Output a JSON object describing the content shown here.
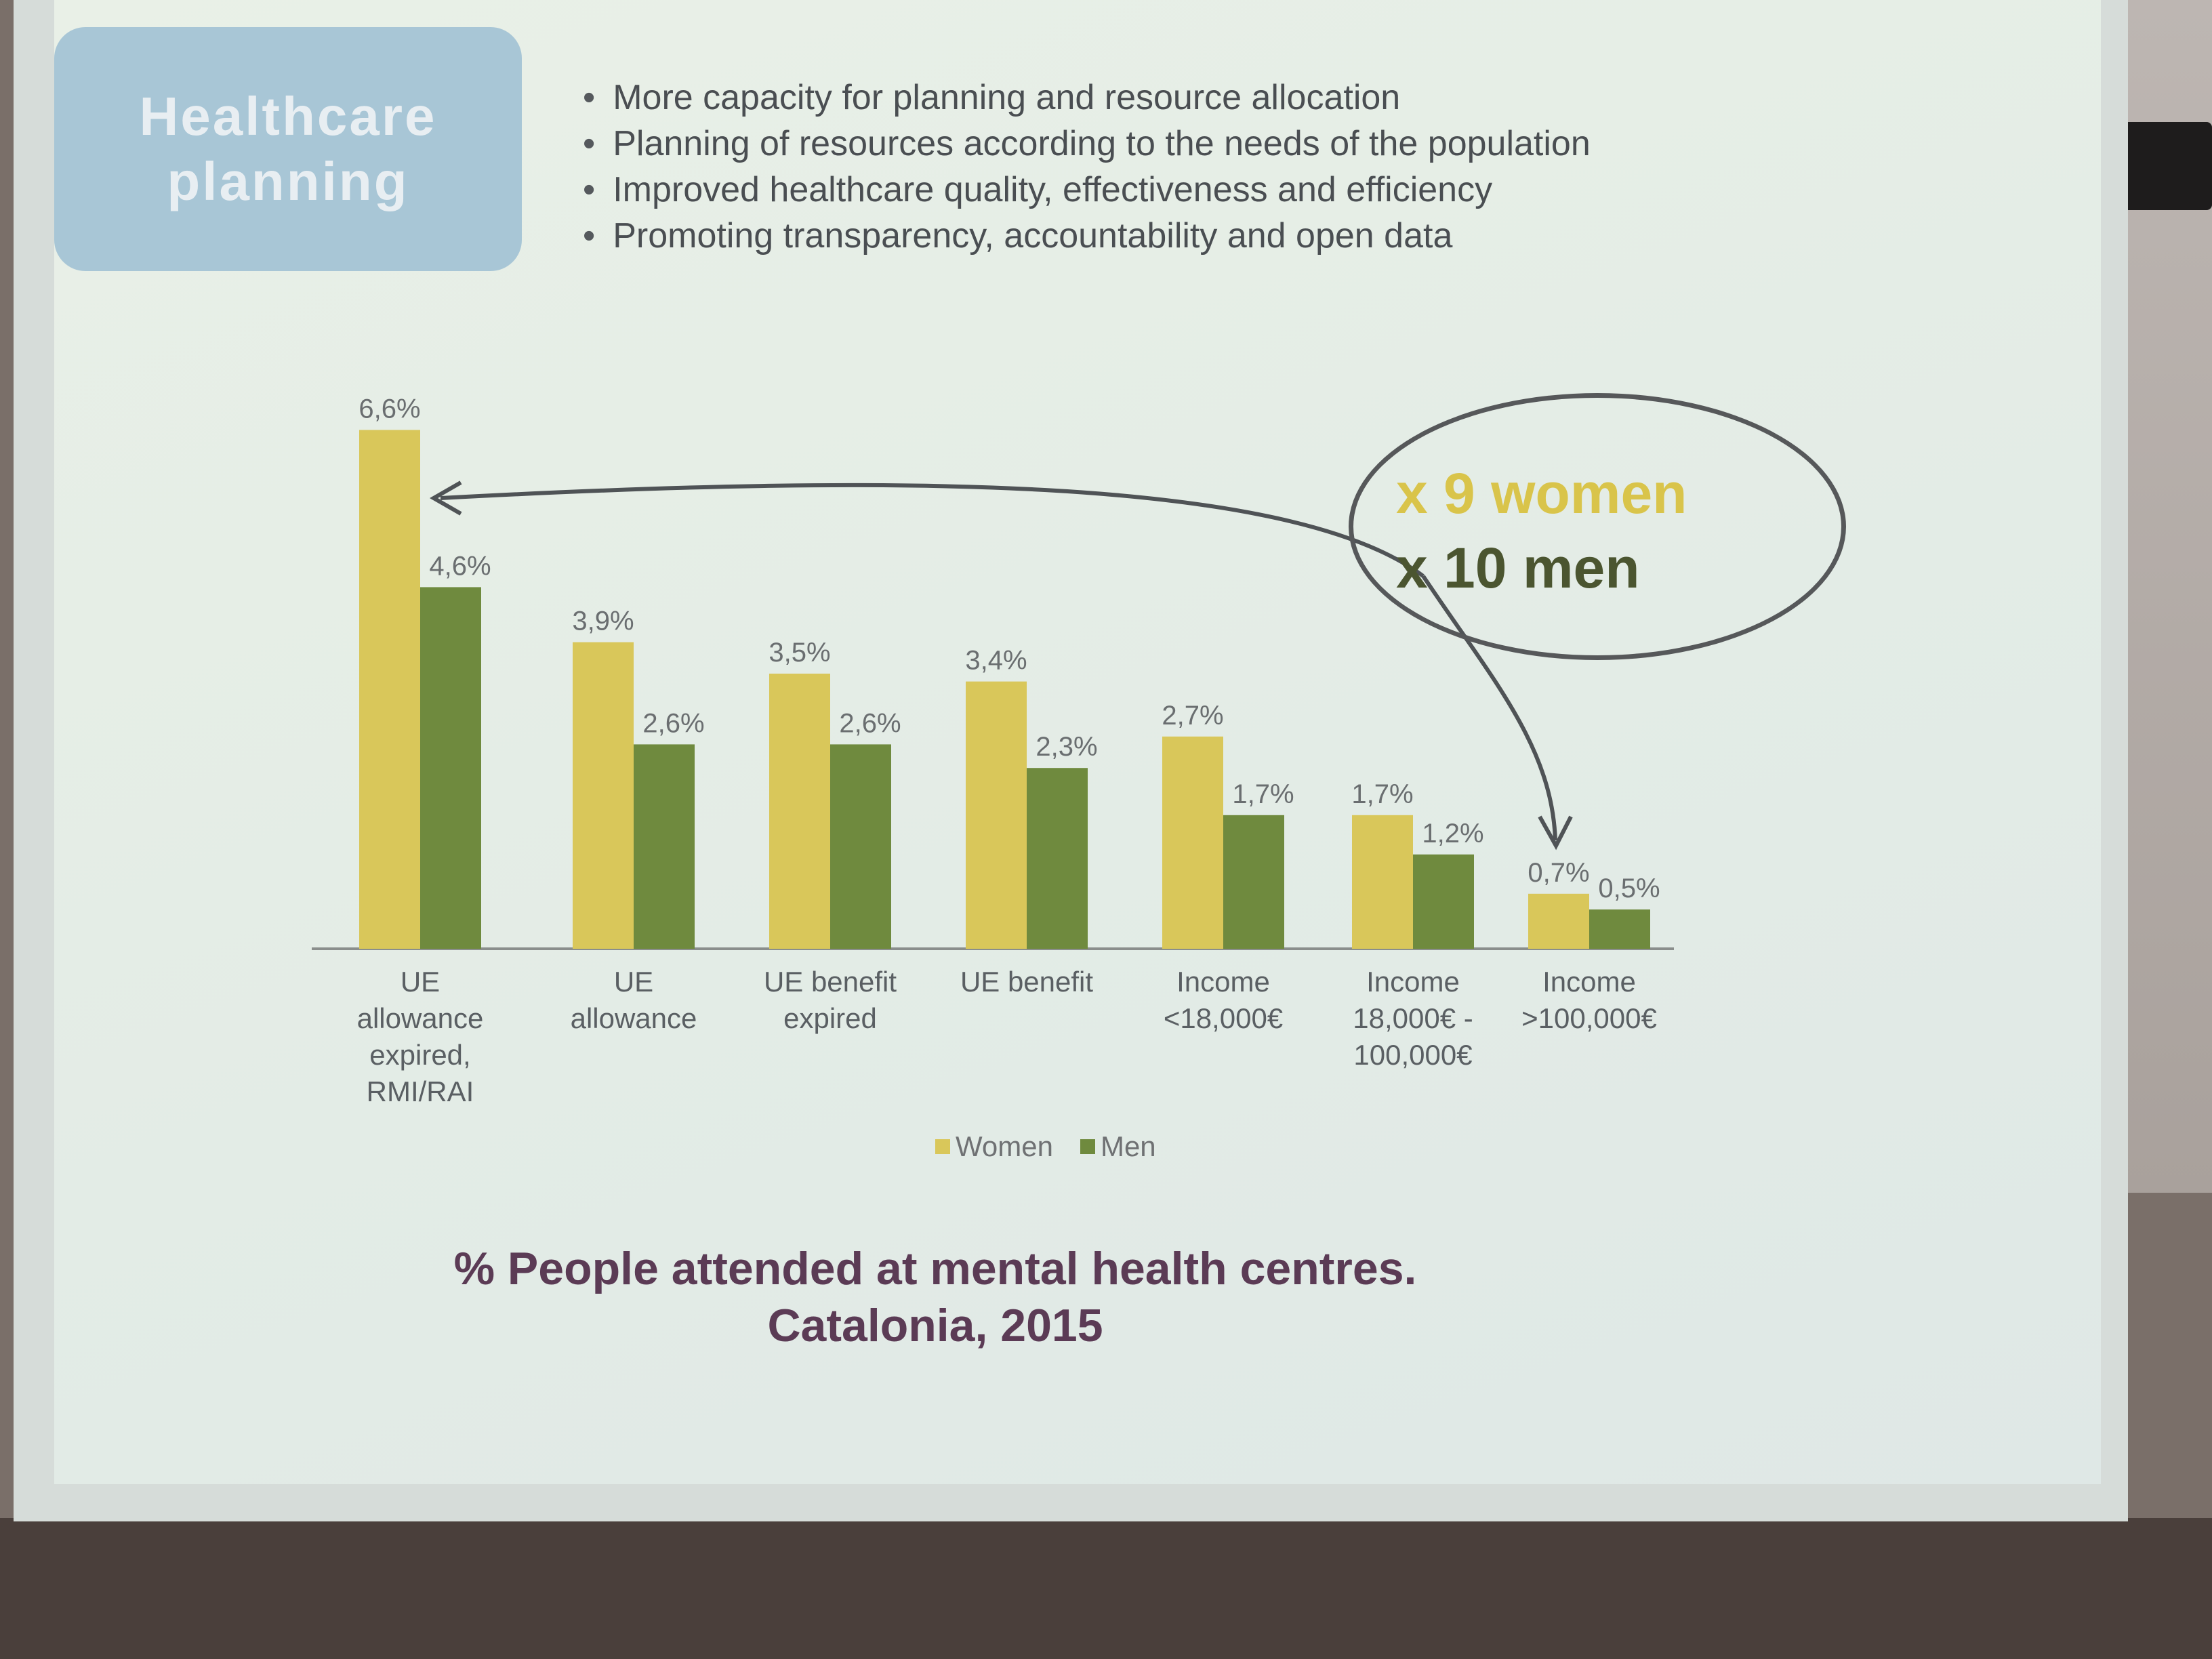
{
  "slide": {
    "badge_text": "Healthcare\nplanning",
    "bullets": [
      "More capacity for planning and resource allocation",
      "Planning of resources according to the needs of the population",
      "Improved healthcare quality, effectiveness and efficiency",
      "Promoting transparency, accountability and open data"
    ],
    "callout": {
      "line1": "x 9 women",
      "line2": "x 10 men"
    }
  },
  "colors": {
    "women": "#d9c75a",
    "men": "#6f8a3e",
    "axis": "#8a8e8c",
    "arrow": "#4f5356"
  },
  "chart_data": {
    "type": "bar",
    "title": "% People attended at mental health centres. Catalonia, 2015",
    "categories": [
      "UE allowance expired, RMI/RAI",
      "UE allowance",
      "UE benefit expired",
      "UE benefit",
      "Income <18,000€",
      "Income 18,000€ - 100,000€",
      "Income >100,000€"
    ],
    "series": [
      {
        "name": "Women",
        "values": [
          6.6,
          3.9,
          3.5,
          3.4,
          2.7,
          1.7,
          0.7
        ],
        "labels": [
          "6,6%",
          "3,9%",
          "3,5%",
          "3,4%",
          "2,7%",
          "1,7%",
          "0,7%"
        ]
      },
      {
        "name": "Men",
        "values": [
          4.6,
          2.6,
          2.6,
          2.3,
          1.7,
          1.2,
          0.5
        ],
        "labels": [
          "4,6%",
          "2,6%",
          "2,6%",
          "2,3%",
          "1,7%",
          "1,2%",
          "0,5%"
        ]
      }
    ],
    "xlabel": "",
    "ylabel": "",
    "ylim": [
      0,
      7
    ],
    "grid": false,
    "legend": "bottom"
  }
}
